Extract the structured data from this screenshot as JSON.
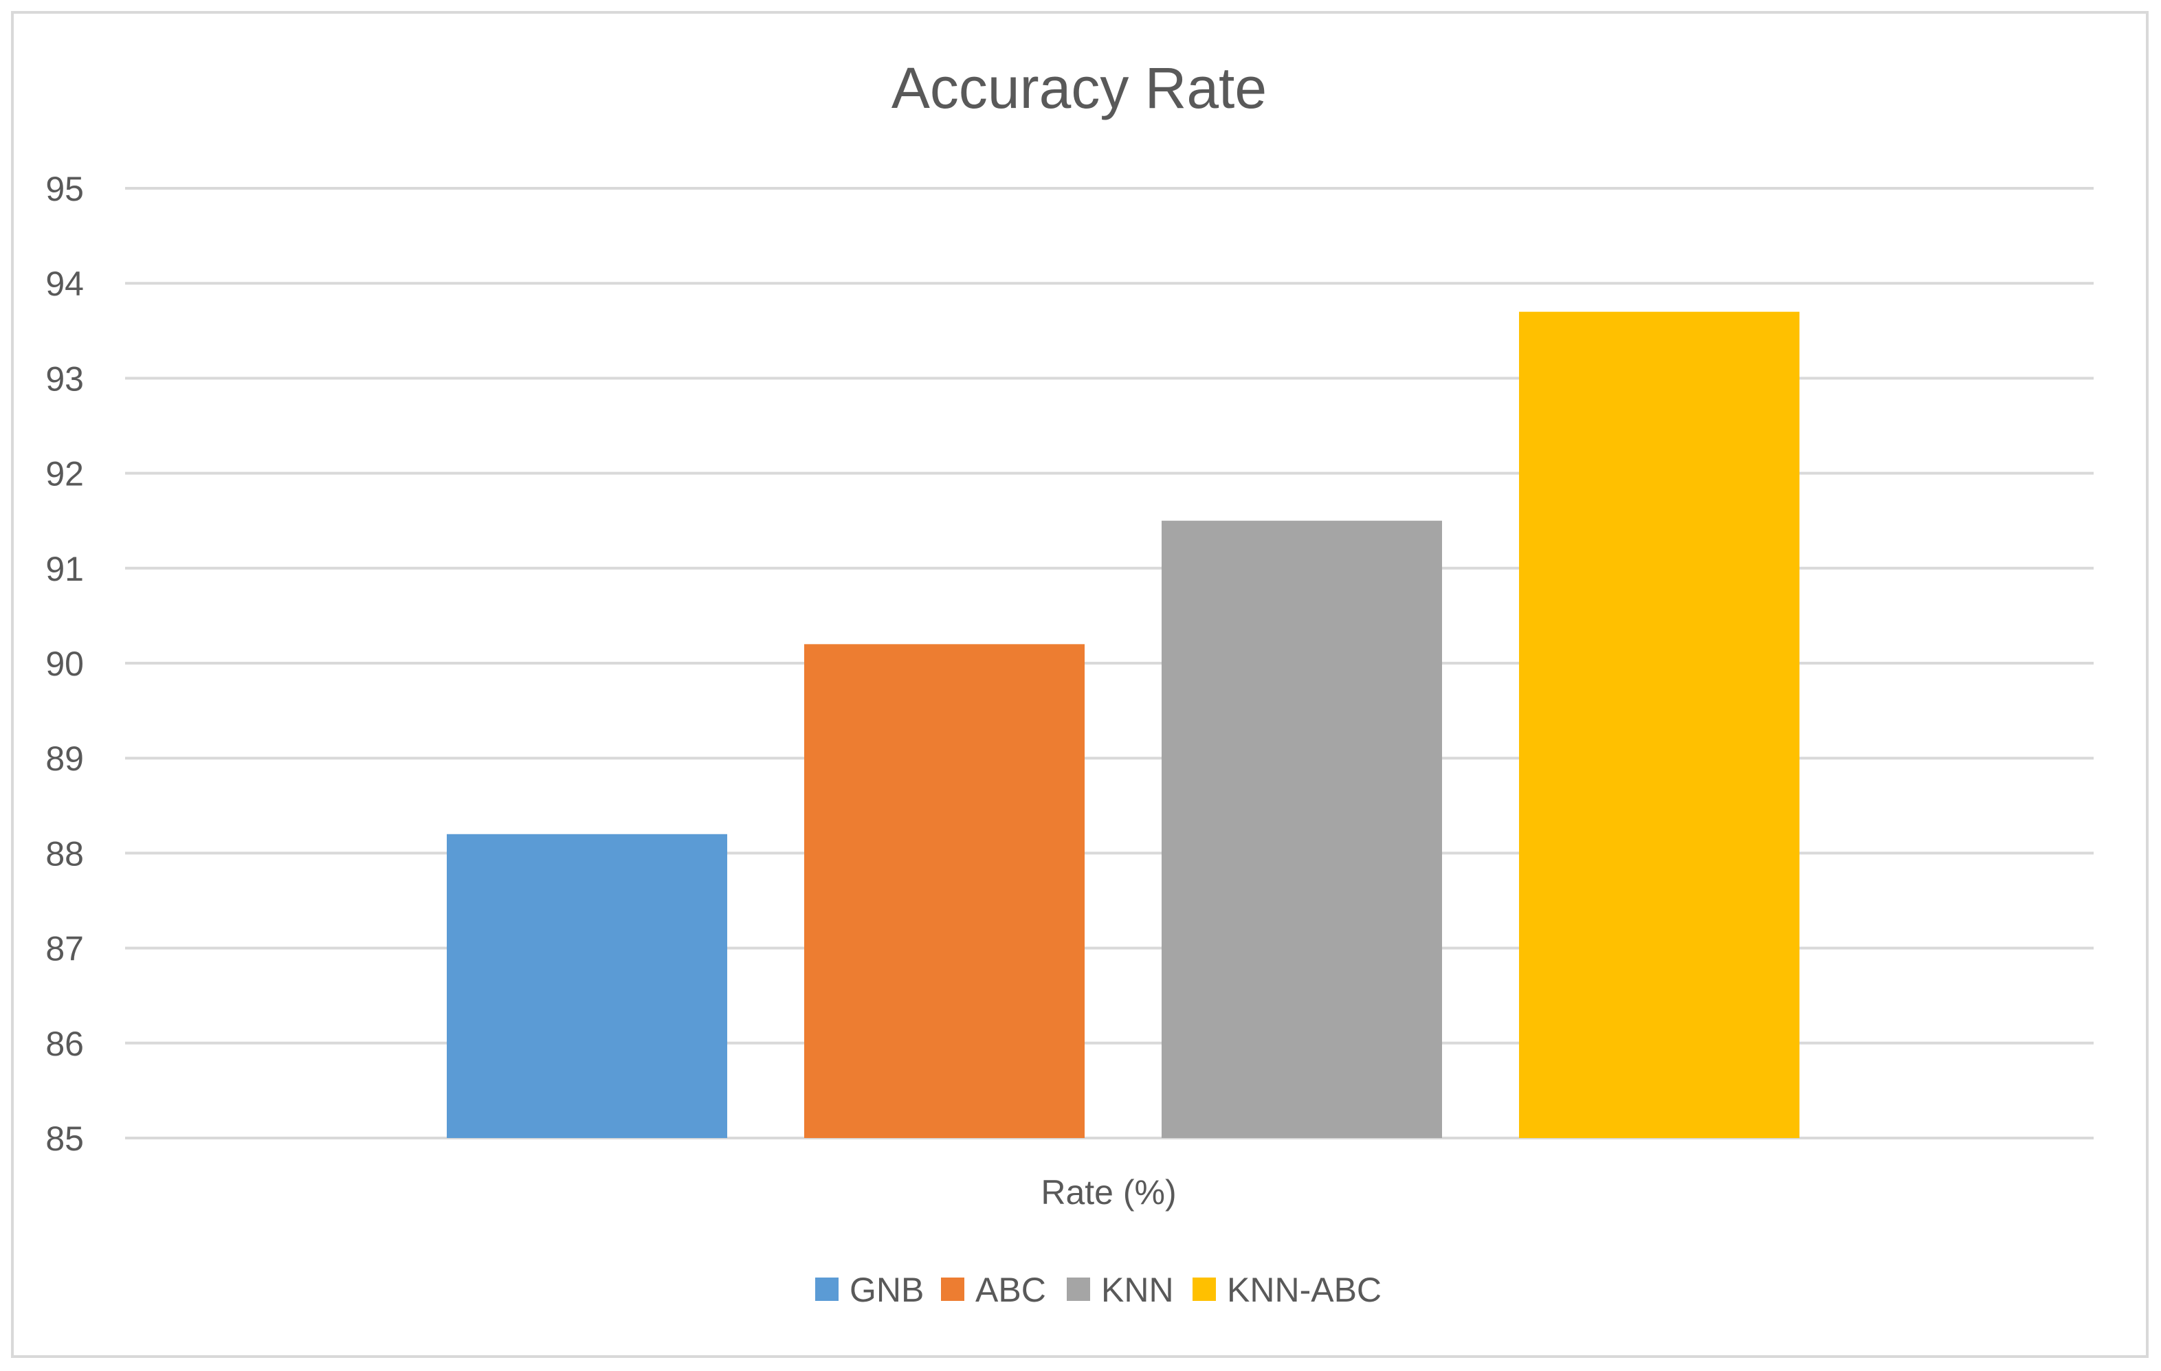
{
  "chart_data": {
    "type": "bar",
    "title": "Accuracy Rate",
    "xlabel": "Rate (%)",
    "ylabel": "",
    "ylim": [
      85,
      95
    ],
    "yticks": [
      85,
      86,
      87,
      88,
      89,
      90,
      91,
      92,
      93,
      94,
      95
    ],
    "grid": true,
    "legend_position": "bottom",
    "series": [
      {
        "name": "GNB",
        "values": [
          88.2
        ],
        "color": "#5b9bd5"
      },
      {
        "name": "ABC",
        "values": [
          90.2
        ],
        "color": "#ed7d31"
      },
      {
        "name": "KNN",
        "values": [
          91.5
        ],
        "color": "#a5a5a5"
      },
      {
        "name": "KNN-ABC",
        "values": [
          93.7
        ],
        "color": "#ffc000"
      }
    ]
  }
}
